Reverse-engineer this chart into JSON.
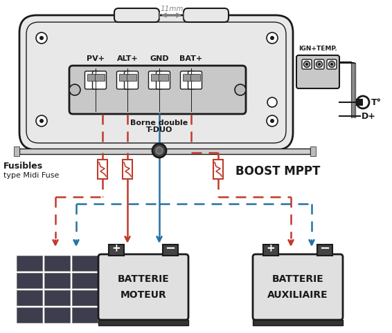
{
  "bg_color": "#ffffff",
  "dark_color": "#1a1a1a",
  "red_color": "#c0392b",
  "blue_color": "#2471a3",
  "gray_color": "#888888",
  "mid_gray": "#aaaaaa",
  "light_gray": "#dddddd",
  "device_gray": "#e8e8e8",
  "connector_labels": [
    "PV+",
    "ALT+",
    "GND",
    "BAT+"
  ],
  "label_11mm": "11mm",
  "label_borne": "Borne double",
  "label_tduo": "T-DUO",
  "label_fusibles": "Fusibles",
  "label_type": "type Midi Fuse",
  "label_boost": "BOOST MPPT",
  "label_ign": "IGN+TEMP.",
  "label_to": "T°",
  "label_dplus": "D+",
  "label_batt_moteur1": "BATTERIE",
  "label_batt_moteur2": "MOTEUR",
  "label_batt_aux1": "BATTERIE",
  "label_batt_aux2": "AUXILIAIRE"
}
